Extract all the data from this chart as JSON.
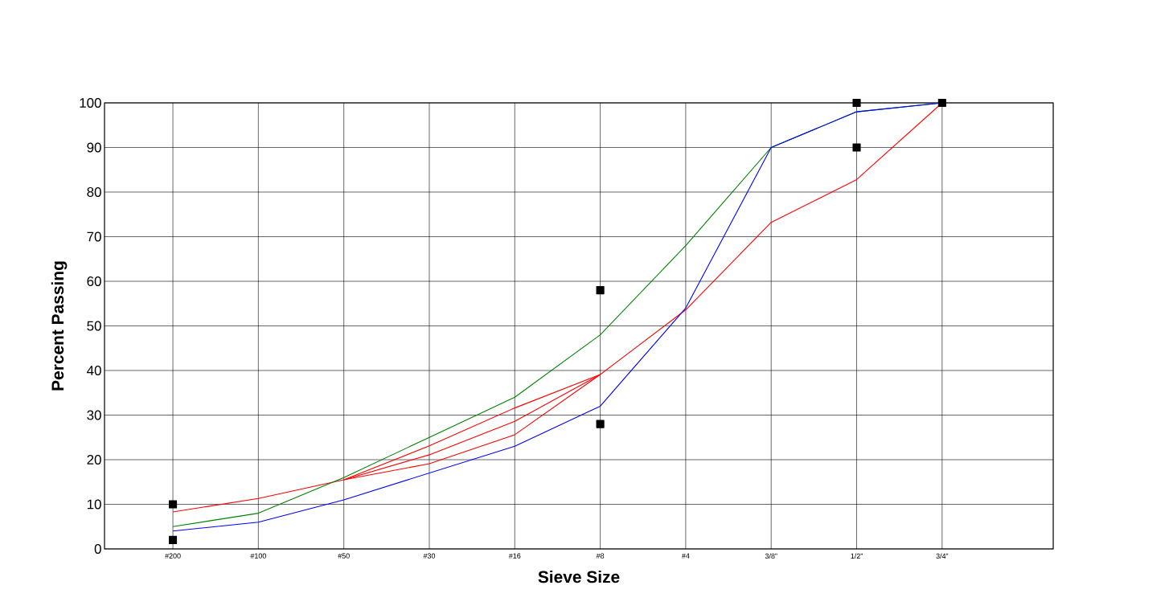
{
  "chart_data": {
    "type": "line",
    "xlabel": "Sieve Size",
    "ylabel": "Percent Passing",
    "categories": [
      "#200",
      "#100",
      "#50",
      "#30",
      "#16",
      "#8",
      "#4",
      "3/8”",
      "1/2”",
      "3/4”"
    ],
    "ylim": [
      0,
      100
    ],
    "yticks": [
      0,
      10,
      20,
      30,
      40,
      50,
      60,
      70,
      80,
      90,
      100
    ],
    "grid": true,
    "marker": "none",
    "line_style": "solid",
    "series": [
      {
        "color": "#ff0000",
        "values": [
          8.3,
          11.3,
          15.5,
          21.1,
          28.6,
          39.1,
          53.6,
          73.2,
          82.8,
          100
        ]
      },
      {
        "color": "#ff0000",
        "values": [
          null,
          null,
          15.5,
          23.1,
          31.6,
          39.1,
          null,
          null,
          null,
          null
        ]
      },
      {
        "color": "#ff0000",
        "values": [
          null,
          null,
          15.5,
          19.1,
          25.6,
          39.1,
          null,
          null,
          null,
          null
        ]
      },
      {
        "color": "#008000",
        "values": [
          5,
          8,
          16,
          25,
          34,
          48,
          68,
          90,
          98,
          100
        ]
      },
      {
        "color": "#0000ff",
        "values": [
          4,
          6,
          11,
          17,
          23,
          32,
          54,
          90,
          98,
          100
        ]
      },
      {
        "type": "scatter",
        "marker": "square",
        "color": "#000000",
        "values": [
          2,
          null,
          null,
          null,
          null,
          28,
          null,
          null,
          90,
          100
        ]
      },
      {
        "type": "scatter",
        "marker": "square",
        "color": "#000000",
        "values": [
          10,
          null,
          null,
          null,
          null,
          58,
          null,
          null,
          100,
          null
        ]
      }
    ]
  }
}
